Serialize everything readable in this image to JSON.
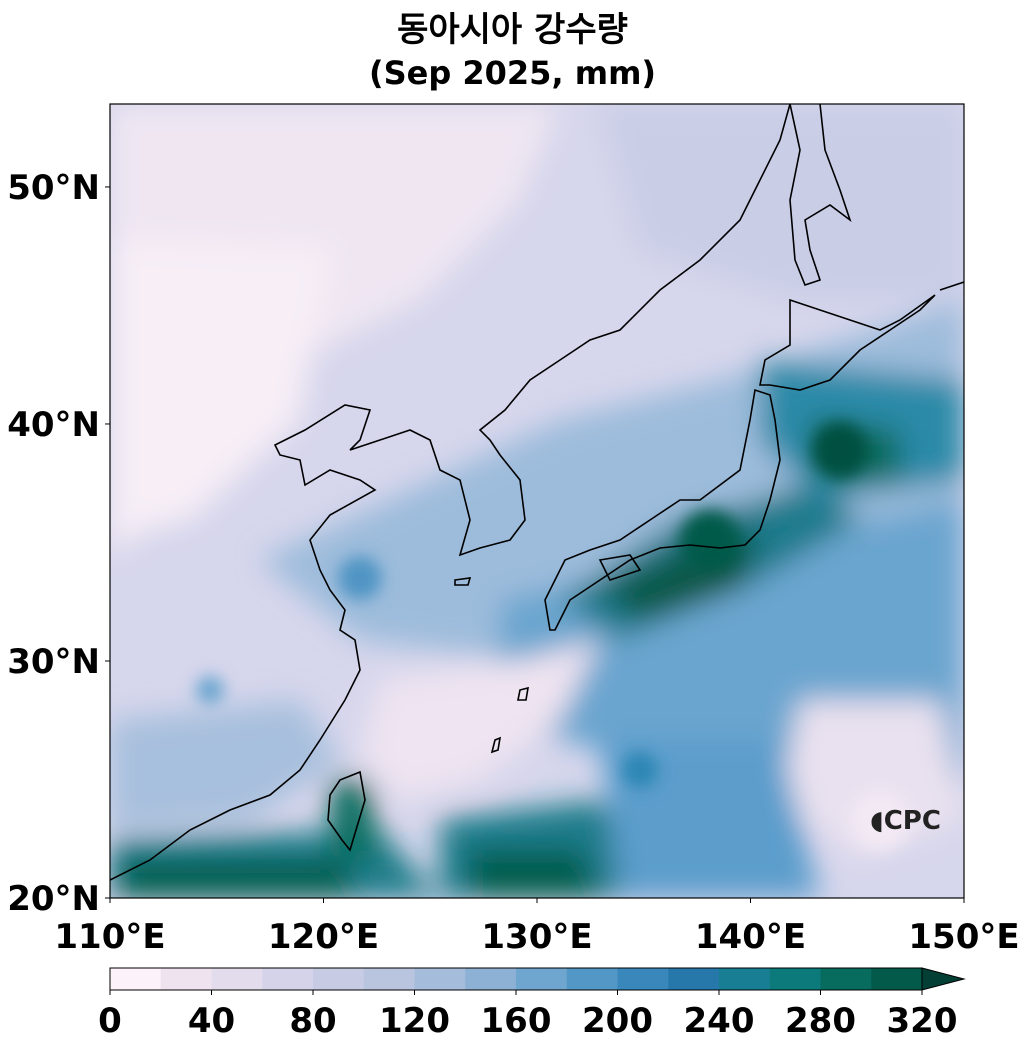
{
  "title": {
    "line1": "동아시아 강수량",
    "line2": "(Sep 2025, mm)"
  },
  "map": {
    "lon_range": [
      110,
      150
    ],
    "lat_range": [
      20,
      53.5
    ],
    "x_ticks": [
      "110°E",
      "120°E",
      "130°E",
      "140°E",
      "150°E"
    ],
    "y_ticks": [
      "20°N",
      "30°N",
      "40°N",
      "50°N"
    ]
  },
  "colorbar": {
    "tick_labels": [
      "0",
      "40",
      "80",
      "120",
      "160",
      "200",
      "240",
      "280",
      "320"
    ],
    "levels": [
      0,
      20,
      40,
      60,
      80,
      100,
      120,
      140,
      160,
      180,
      200,
      220,
      240,
      260,
      280,
      300,
      320
    ],
    "colors": [
      "#fbf3f9",
      "#efe3f0",
      "#e2dced",
      "#d5d3ea",
      "#c8cbe4",
      "#b9c4df",
      "#a5bcda",
      "#8db1d4",
      "#6fa6cf",
      "#5297c6",
      "#3a87bb",
      "#2678ab",
      "#177e94",
      "#0c7a7a",
      "#076b5e",
      "#045a4a"
    ],
    "extend_color": "#033f34"
  },
  "logo": {
    "text": "CPC"
  }
}
